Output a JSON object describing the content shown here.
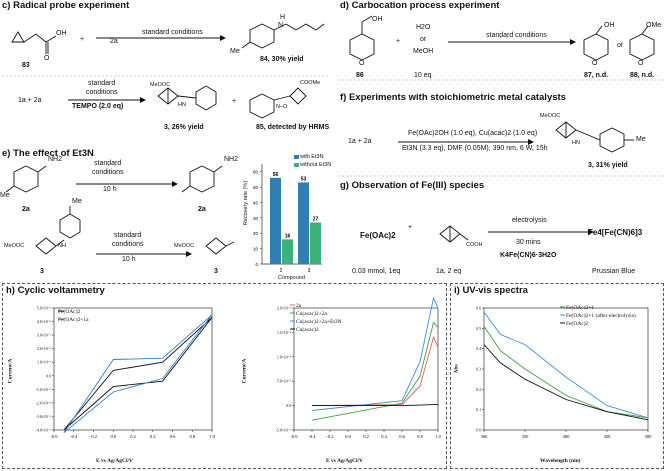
{
  "panel_c": {
    "title": "c) Radical probe experiment",
    "plus": "+",
    "reagent": "2a",
    "condition": "standard conditions",
    "start_label": "83",
    "product_label": "84, 30% yield",
    "oh": "OH",
    "o": "O",
    "nh": "N",
    "h": "H",
    "me": "Me",
    "row2_lhs": "1a  +  2a",
    "row2_cond1": "standard",
    "row2_cond2": "conditions",
    "row2_cond3": "TEMPO (2.0 eq)",
    "meooc": "MeOOC",
    "hn": "HN",
    "product3": "3, 26% yield",
    "coome": "COOMe",
    "product85": "85, detected by HRMS",
    "n_o": "N–O"
  },
  "panel_d": {
    "title": "d) Carbocation process experiment",
    "h2o": "H2O",
    "or": "or",
    "meoh": "MeOH",
    "eq": "10 eq",
    "plus": "+",
    "condition": "standard conditions",
    "start_label": "86",
    "oh": "OH",
    "ome": "OMe",
    "o": "O",
    "p87": "87, n.d.",
    "p88": "88, n.d.",
    "or2": "or"
  },
  "panel_e": {
    "title": "e) The effect of Et3N",
    "cond_a1": "standard",
    "cond_a2": "conditions",
    "cond_a3": "10 h",
    "label_2a_left": "2a",
    "label_2a_right": "2a",
    "nh2": "NH2",
    "me": "Me",
    "cond_b1": "standard",
    "cond_b2": "conditions",
    "cond_b3": "10 h",
    "label_3_left": "3",
    "label_3_right": "3",
    "meooc": "MeOOC",
    "nh": "NH"
  },
  "chart_e": {
    "ylabel": "Recovery rate (%)",
    "xlabel": "Compound",
    "legend_with": "with Et3N",
    "legend_without": "without Et3N",
    "color_with": "#2f7fb5",
    "color_without": "#3bb27a",
    "ticks": [
      "0",
      "10",
      "20",
      "30",
      "40",
      "50",
      "60"
    ]
  },
  "panel_f": {
    "title": "f) Experiments with stoichiometric metal catalysts",
    "lhs": "1a  +  2a",
    "cond1": "Fe(OAc)2OH (1.0 eq), Cu(acac)2 (1.0 eq)",
    "cond2": "Et3N (3.3 eq), DMF (0.05M), 390 nm, 6 W, 15h",
    "meooc": "MeOOC",
    "hn": "HN",
    "me": "Me",
    "product": "3, 31% yield"
  },
  "panel_g": {
    "title": "g) Observation of Fe(III) species",
    "feoac": "Fe(OAc)2",
    "plus": "+",
    "cooh": "COOH",
    "cond1": "electrolysis",
    "cond2": "30 mins",
    "cond3": "K4Fe(CN)6·3H2O",
    "product": "Fe4[Fe(CN)6]3",
    "amt1": "0.03 mmol, 1eq",
    "amt2": "1a, 2 eq",
    "prussian": "Prussian Blue"
  },
  "panel_h": {
    "title": "h) Cyclic voltammetry",
    "left_legend": [
      "Fe(OAc)2",
      "Fe(OAc)2+1a"
    ],
    "left_colors": [
      "#111111",
      "#2f7fd0"
    ],
    "left_ylabel": "Current/A",
    "left_xlabel": "E vs Ag/AgCl/V",
    "left_yticks": [
      "5.0×10⁻⁵",
      "4.0×10⁻⁵",
      "3.0×10⁻⁵",
      "2.0×10⁻⁵",
      "1.0×10⁻⁵",
      "0.0",
      "-1.0×10⁻⁵",
      "-2.0×10⁻⁵",
      "-3.0×10⁻⁵",
      "-4.0×10⁻⁵"
    ],
    "left_xticks": [
      "-0.6",
      "-0.4",
      "-0.2",
      "0.0",
      "0.2",
      "0.4",
      "0.6",
      "0.8",
      "1.0"
    ],
    "right_legend": [
      "2a",
      "Cu(acac)2+2a",
      "Cu(acac)2+2a+Et3N",
      "Cu(acac)2"
    ],
    "right_colors": [
      "#e06060",
      "#40a040",
      "#3f8fe0",
      "#111111"
    ],
    "right_ylabel": "Current/A",
    "right_xlabel": "E vs Ag/AgCl/V",
    "right_yticks": [
      "2.0×10⁻⁴",
      "1.5×10⁻⁴",
      "1.0×10⁻⁴",
      "5.0×10⁻⁵",
      "0.0",
      "-5.0×10⁻⁵"
    ],
    "right_xticks": [
      "-0.6",
      "-0.4",
      "-0.2",
      "0.0",
      "0.2",
      "0.4",
      "0.6",
      "0.8",
      "1.0"
    ]
  },
  "panel_i": {
    "title": "i) UV-vis spectra",
    "legend": [
      "Fe(OAc)2+1",
      "Fe(OAc)2+1 (after electrolysis)",
      "Fe(OAc)2"
    ],
    "colors": [
      "#40a040",
      "#3f8fe0",
      "#111111"
    ],
    "ylabel": "Abs",
    "xlabel": "Wavelength (nm)",
    "yticks": [
      "0.6",
      "0.5",
      "0.4",
      "0.3",
      "0.2",
      "0.1",
      "0.0"
    ],
    "xticks": [
      "300",
      "350",
      "400",
      "450",
      "500"
    ]
  },
  "chart_data": [
    {
      "type": "bar",
      "categories": [
        "2",
        "3"
      ],
      "series": [
        {
          "name": "with Et3N",
          "values": [
            56,
            53
          ]
        },
        {
          "name": "without Et3N",
          "values": [
            16,
            27
          ]
        }
      ],
      "xlabel": "Compound",
      "ylabel": "Recovery rate (%)",
      "ylim": [
        0,
        65
      ],
      "legend": "top-right"
    },
    {
      "type": "line",
      "xlabel": "E vs Ag/AgCl/V",
      "ylabel": "Current/A",
      "xlim": [
        -0.6,
        1.0
      ],
      "series": [
        {
          "name": "Fe(OAc)2",
          "x": [
            -0.5,
            0.0,
            0.5,
            1.0,
            0.5,
            0.0,
            -0.5
          ],
          "y": [
            -4e-05,
            4e-06,
            1e-05,
            4.3e-05,
            -4e-06,
            -8e-06,
            -4e-05
          ]
        },
        {
          "name": "Fe(OAc)2+1a",
          "x": [
            -0.5,
            0.0,
            0.5,
            1.0,
            0.5,
            0.0,
            -0.5
          ],
          "y": [
            -4.2e-05,
            1.2e-05,
            1.3e-05,
            4.5e-05,
            -2e-06,
            -1.2e-05,
            -4.2e-05
          ]
        }
      ],
      "legend": "top-left"
    },
    {
      "type": "line",
      "xlabel": "E vs Ag/AgCl/V",
      "ylabel": "Current/A",
      "xlim": [
        -0.6,
        1.0
      ],
      "series": [
        {
          "name": "2a",
          "x": [
            -0.4,
            0.6,
            0.8,
            0.95,
            1.0
          ],
          "y": [
            0,
            2e-06,
            4e-05,
            0.00014,
            0.00012
          ]
        },
        {
          "name": "Cu(acac)2+2a",
          "x": [
            -0.4,
            0.6,
            0.8,
            0.95,
            1.0
          ],
          "y": [
            -3e-05,
            5e-06,
            6e-05,
            0.00017,
            0.00016
          ]
        },
        {
          "name": "Cu(acac)2+2a+Et3N",
          "x": [
            -0.4,
            0.6,
            0.8,
            0.95,
            1.0
          ],
          "y": [
            -1e-05,
            1e-05,
            9e-05,
            0.00022,
            0.0002
          ]
        },
        {
          "name": "Cu(acac)2",
          "x": [
            -0.4,
            0.6,
            0.8,
            0.95,
            1.0
          ],
          "y": [
            0,
            0,
            1e-06,
            2e-06,
            2e-06
          ]
        }
      ],
      "legend": "top-left"
    },
    {
      "type": "line",
      "xlabel": "Wavelength (nm)",
      "ylabel": "Abs",
      "xlim": [
        300,
        500
      ],
      "ylim": [
        0.0,
        0.65
      ],
      "series": [
        {
          "name": "Fe(OAc)2+1",
          "x": [
            300,
            320,
            350,
            400,
            450,
            500
          ],
          "y": [
            0.51,
            0.39,
            0.3,
            0.17,
            0.09,
            0.06
          ]
        },
        {
          "name": "Fe(OAc)2+1 (after electrolysis)",
          "x": [
            300,
            320,
            350,
            400,
            450,
            500
          ],
          "y": [
            0.58,
            0.47,
            0.42,
            0.26,
            0.12,
            0.06
          ]
        },
        {
          "name": "Fe(OAc)2",
          "x": [
            300,
            320,
            350,
            400,
            450,
            500
          ],
          "y": [
            0.42,
            0.33,
            0.25,
            0.15,
            0.09,
            0.05
          ]
        }
      ],
      "legend": "top-right"
    }
  ]
}
